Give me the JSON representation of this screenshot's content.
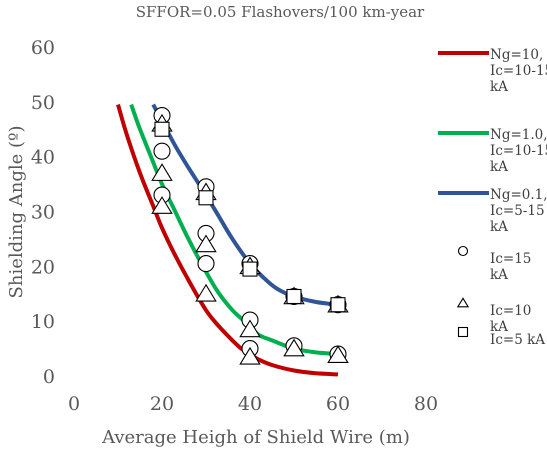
{
  "chart_data": {
    "type": "line",
    "title": "SFFOR=0.05 Flashovers/100 km-year",
    "xlabel": "Average Heigh of Shield Wire (m)",
    "ylabel": "Shielding Angle (º)",
    "xlim": [
      0,
      80
    ],
    "ylim": [
      0,
      60
    ],
    "xticks": [
      "0",
      "20",
      "40",
      "60",
      "80"
    ],
    "yticks": [
      "0",
      "10",
      "20",
      "30",
      "40",
      "50",
      "60"
    ],
    "grid": false,
    "legend_position": "right",
    "series": [
      {
        "name": "Ng=10, Ic=10-15 kA",
        "style": "line",
        "color": "#c00000",
        "x": [
          10,
          12,
          15,
          18,
          20,
          23,
          26,
          30,
          33,
          36,
          38,
          40,
          42,
          45,
          50,
          55,
          60
        ],
        "y": [
          49.5,
          44,
          37,
          31,
          27,
          22,
          17.5,
          12,
          9,
          6.5,
          5,
          4,
          3,
          2,
          1,
          0.5,
          0.3
        ]
      },
      {
        "name": "Ng=1.0, Ic=10-15 kA",
        "style": "line",
        "color": "#00b050",
        "x": [
          13,
          15,
          18,
          20,
          23,
          26,
          30,
          33,
          36,
          38,
          40,
          42,
          45,
          50,
          55,
          60
        ],
        "y": [
          49.5,
          45,
          39,
          35,
          30,
          25,
          19,
          15,
          12,
          10.5,
          9,
          7.5,
          6.5,
          5,
          4.3,
          4
        ]
      },
      {
        "name": "Ng=0.1, Ic=5-15 kA",
        "style": "line",
        "color": "#2f5597",
        "x": [
          18,
          20,
          23,
          26,
          30,
          33,
          36,
          40,
          43,
          46,
          50,
          55,
          60
        ],
        "y": [
          49.5,
          46.5,
          42,
          38,
          33,
          29,
          25,
          20.5,
          18,
          16,
          14.5,
          13.5,
          13
        ]
      },
      {
        "name": "Ic=15 kA",
        "style": "marker",
        "marker": "circle",
        "color": "#000000",
        "x": [
          20,
          20,
          20,
          30,
          30,
          30,
          40,
          40,
          40,
          50,
          50,
          60,
          60
        ],
        "y": [
          47.5,
          41,
          33,
          34.5,
          26,
          20.5,
          20.5,
          10.2,
          5,
          14.5,
          5.5,
          13,
          4
        ]
      },
      {
        "name": "Ic=10 kA",
        "style": "marker",
        "marker": "triangle",
        "color": "#000000",
        "x": [
          20,
          20,
          20,
          30,
          30,
          30,
          40,
          40,
          40,
          50,
          50,
          60,
          60
        ],
        "y": [
          46,
          37,
          31,
          33.5,
          24,
          15,
          20,
          8.5,
          3.5,
          14.5,
          5,
          13,
          3.8
        ]
      },
      {
        "name": "Ic=5 kA",
        "style": "marker",
        "marker": "square",
        "color": "#000000",
        "x": [
          20,
          30,
          40,
          50,
          60
        ],
        "y": [
          45,
          32.5,
          19.5,
          14.5,
          13
        ]
      }
    ],
    "legend": [
      {
        "lines": [
          "Ng=10,",
          "Ic=10-15",
          "kA"
        ]
      },
      {
        "lines": [
          "Ng=1.0,",
          "Ic=10-15",
          "kA"
        ]
      },
      {
        "lines": [
          "Ng=0.1,",
          "Ic=5-15",
          "kA"
        ]
      },
      {
        "lines": [
          "Ic=15",
          "kA"
        ]
      },
      {
        "lines": [
          "Ic=10",
          "kA"
        ]
      },
      {
        "lines": [
          "Ic=5 kA"
        ]
      }
    ]
  }
}
